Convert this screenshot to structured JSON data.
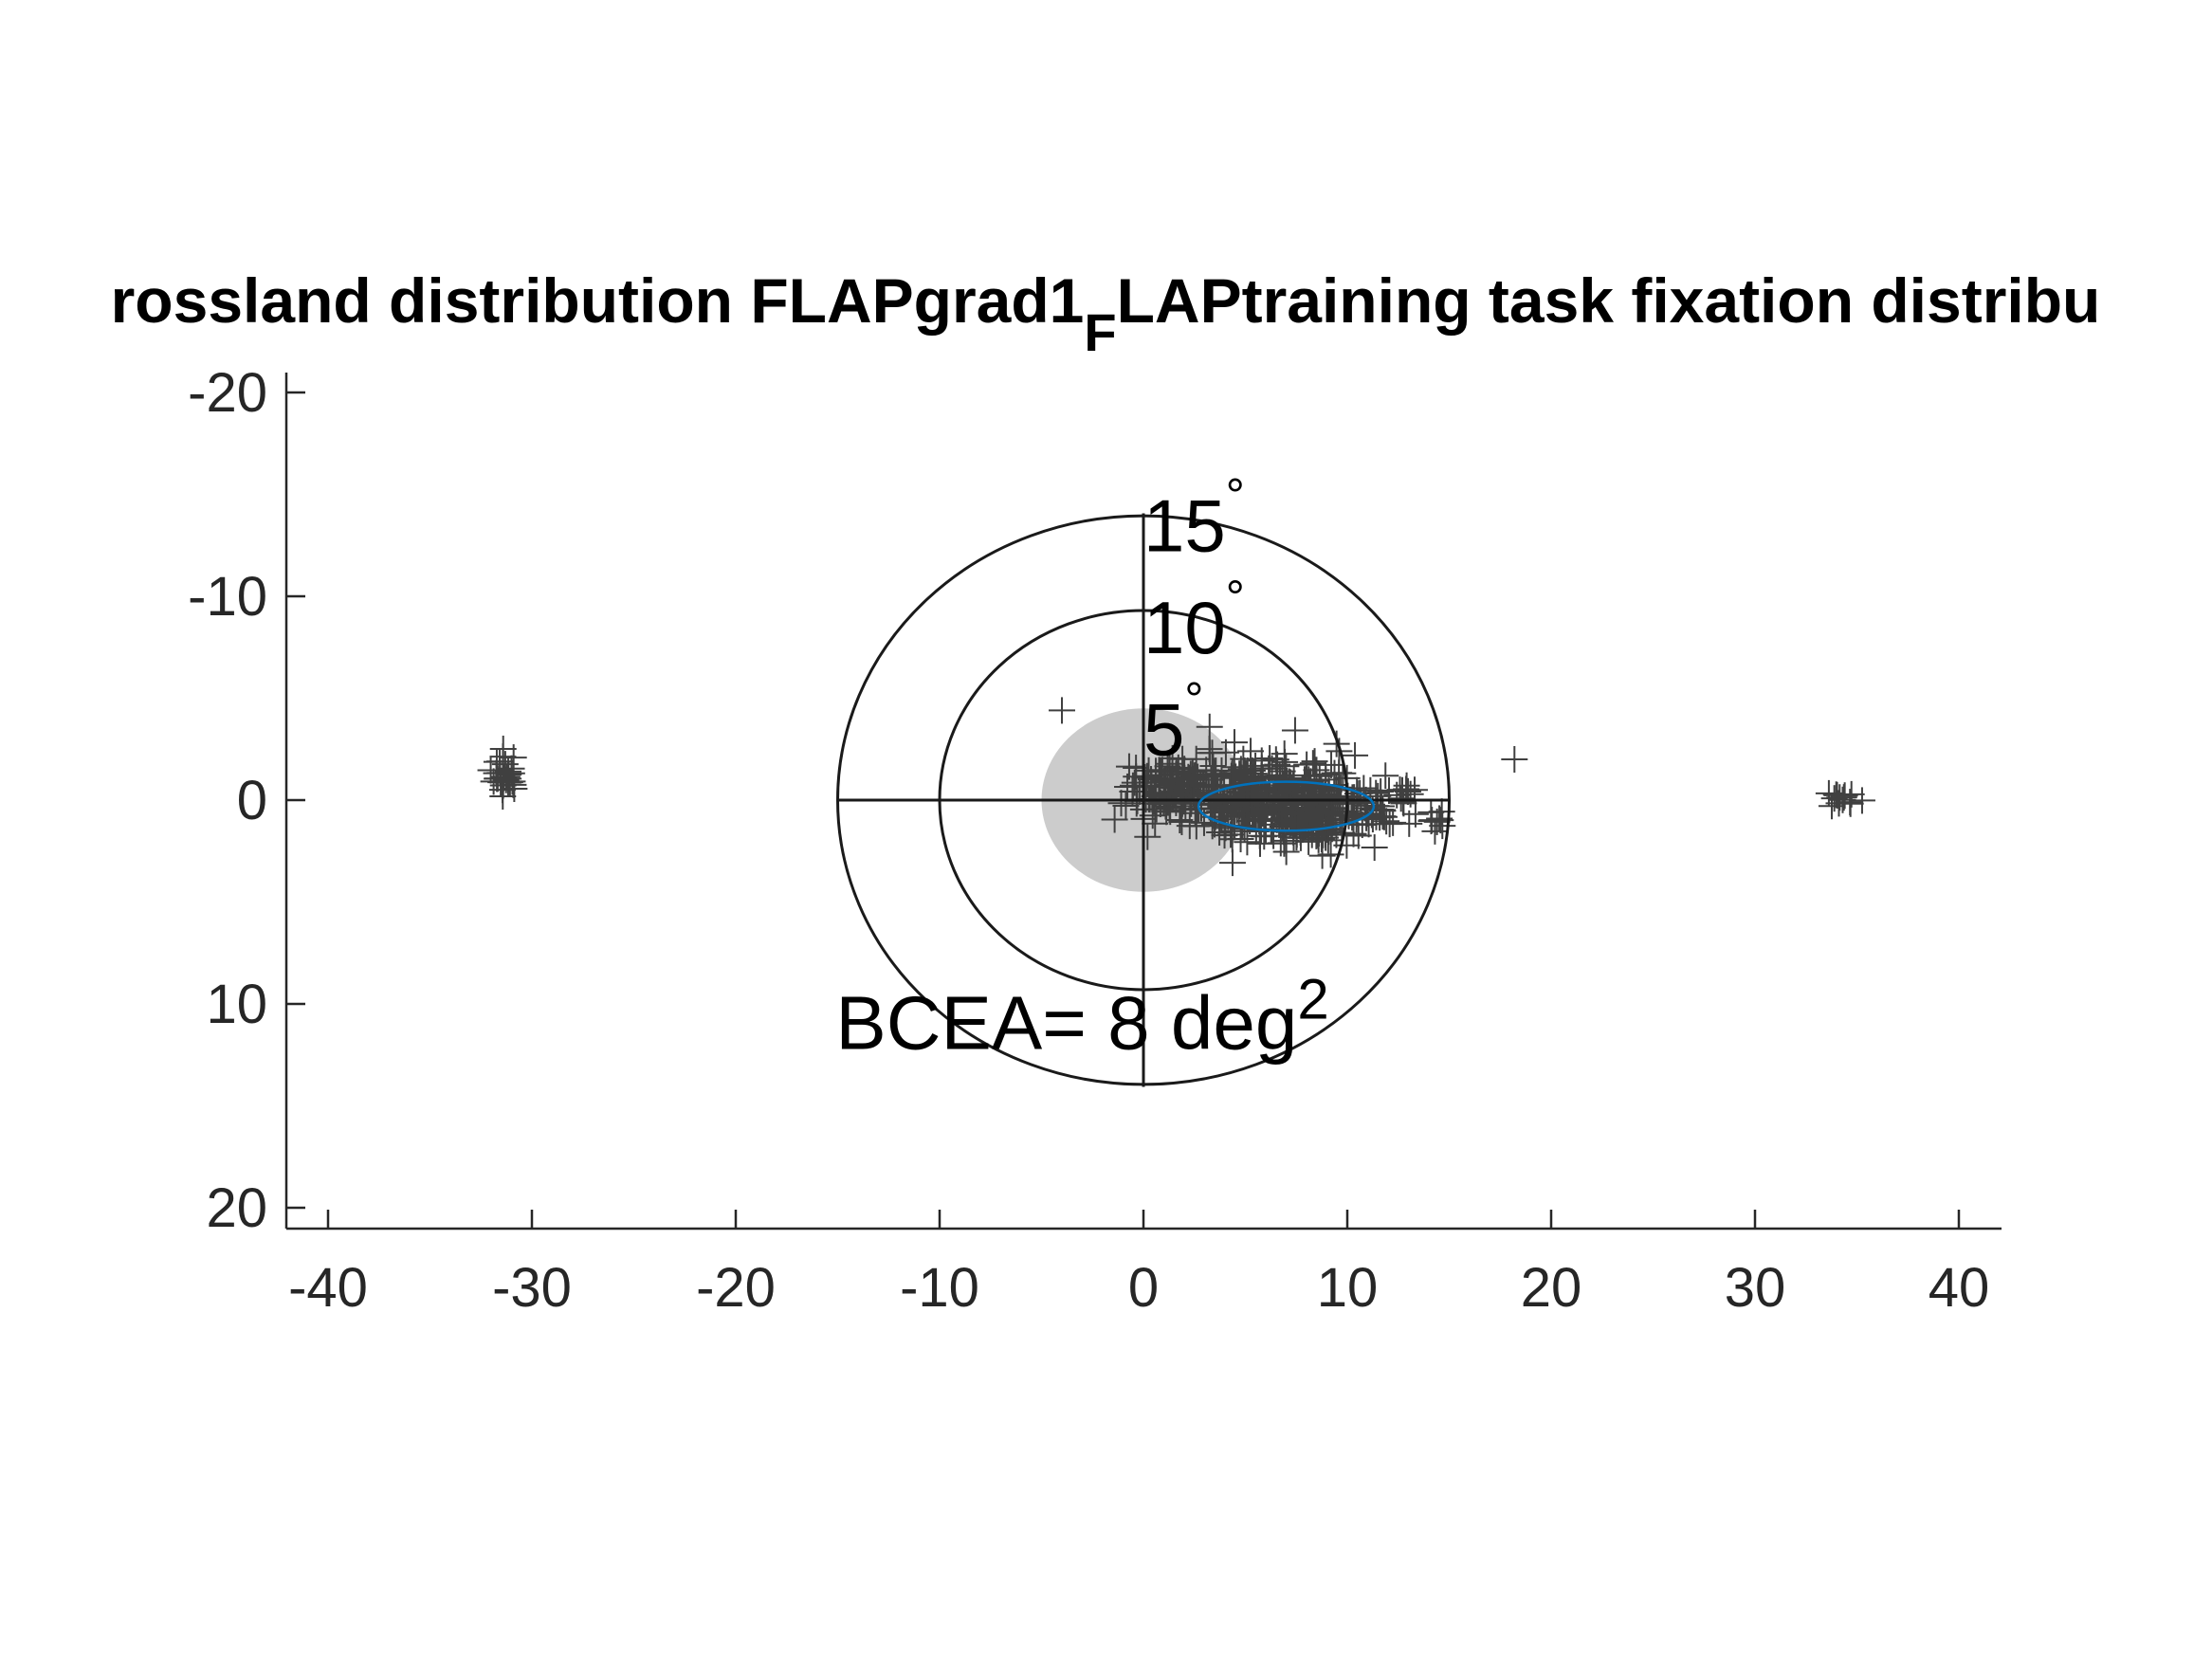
{
  "chart_data": {
    "type": "scatter",
    "title_main": "rossland distribution FLAPgrad1",
    "title_sub": "F",
    "title_rest": "LAPtraining task fixation distribu",
    "xlabel": "",
    "ylabel": "",
    "xlim": [
      -42,
      42
    ],
    "ylim": [
      23,
      -23
    ],
    "y_reversed": true,
    "grid": false,
    "xticks": [
      -40,
      -30,
      -20,
      -10,
      0,
      10,
      20,
      30,
      40
    ],
    "xtick_labels": [
      "-40",
      "-30",
      "-20",
      "-10",
      "0",
      "10",
      "20",
      "30",
      "40"
    ],
    "yticks": [
      -20,
      -10,
      0,
      10,
      20
    ],
    "ytick_labels": [
      "-20",
      "-10",
      "0",
      "10",
      "20"
    ],
    "rings": [
      {
        "radius": 5,
        "label": "5",
        "filled": true,
        "fill_color": "#cccccc"
      },
      {
        "radius": 10,
        "label": "10",
        "filled": false
      },
      {
        "radius": 15,
        "label": "15",
        "filled": false
      }
    ],
    "degree_symbol": "°",
    "bcea_label": "BCEA= 8 deg",
    "bcea_superscript": "2",
    "bcea_ellipse": {
      "cx": 7,
      "cy": 0.3,
      "rx": 4.3,
      "ry": 1.2,
      "color": "#0072bd"
    },
    "marker_color": "#404040",
    "clusters": [
      {
        "cx": -31.3,
        "cy": -1.2,
        "sx": 0.35,
        "sy": 0.5,
        "n": 30
      },
      {
        "cx": 1.2,
        "cy": -0.6,
        "sx": 1.0,
        "sy": 0.7,
        "n": 110
      },
      {
        "cx": 5.2,
        "cy": -0.2,
        "sx": 1.9,
        "sy": 1.0,
        "n": 280
      },
      {
        "cx": 8.3,
        "cy": 0.4,
        "sx": 1.5,
        "sy": 0.95,
        "n": 230
      },
      {
        "cx": 11.5,
        "cy": 0.8,
        "sx": 0.5,
        "sy": 0.4,
        "n": 20
      },
      {
        "cx": 12.8,
        "cy": -0.5,
        "sx": 0.4,
        "sy": 0.35,
        "n": 14
      },
      {
        "cx": 14.1,
        "cy": 0.9,
        "sx": 0.35,
        "sy": 0.35,
        "n": 10
      },
      {
        "cx": 34.3,
        "cy": 0.0,
        "sx": 0.4,
        "sy": 0.2,
        "n": 14
      }
    ],
    "outliers": [
      {
        "x": -4.0,
        "y": -4.4
      },
      {
        "x": 18.2,
        "y": -2.0
      },
      {
        "x": 0.2,
        "y": 1.8
      },
      {
        "x": 9.6,
        "y": -2.4
      }
    ]
  }
}
